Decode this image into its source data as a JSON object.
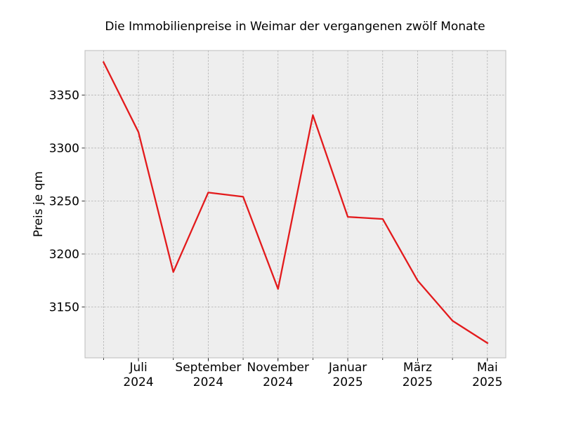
{
  "chart_data": {
    "type": "line",
    "title": "Die Immobilienpreise in Weimar der vergangenen zwölf Monate",
    "xlabel": "",
    "ylabel": "Preis je qm",
    "x": [
      "2024-06",
      "2024-07",
      "2024-08",
      "2024-09",
      "2024-10",
      "2024-11",
      "2024-12",
      "2025-01",
      "2025-02",
      "2025-03",
      "2025-04",
      "2025-05"
    ],
    "y_ticks": [
      3150,
      3200,
      3250,
      3300,
      3350
    ],
    "x_tick_labels": [
      {
        "x": "2024-07",
        "line1": "Juli",
        "line2": "2024"
      },
      {
        "x": "2024-09",
        "line1": "September",
        "line2": "2024"
      },
      {
        "x": "2024-11",
        "line1": "November",
        "line2": "2024"
      },
      {
        "x": "2025-01",
        "line1": "Januar",
        "line2": "2025"
      },
      {
        "x": "2025-03",
        "line1": "März",
        "line2": "2025"
      },
      {
        "x": "2025-05",
        "line1": "Mai",
        "line2": "2025"
      }
    ],
    "ylim": [
      3102,
      3392
    ],
    "grid": true,
    "series": [
      {
        "color": "#e31a1c",
        "values": [
          3381,
          3315,
          3183,
          3258,
          3254,
          3167,
          3331,
          3235,
          3233,
          3175,
          3137,
          3116
        ]
      }
    ],
    "colors": {
      "plot_background": "#eeeeee",
      "plot_border": "#bcbcbc",
      "grid": "#b0b0b0"
    }
  }
}
